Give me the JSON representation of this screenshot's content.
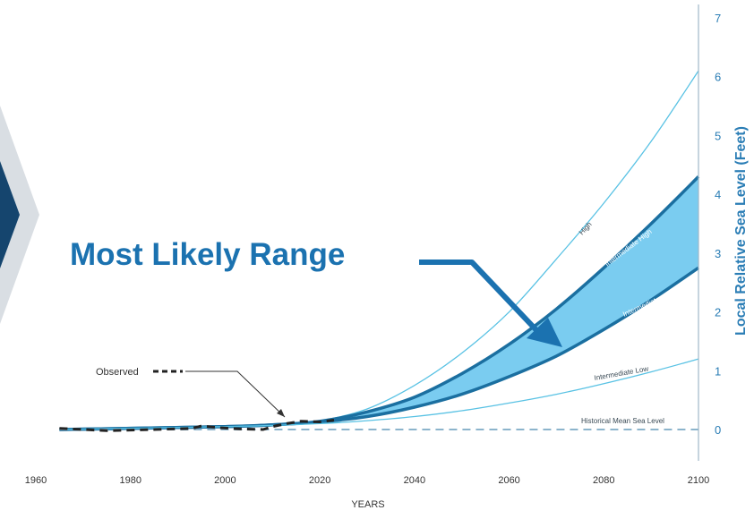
{
  "colors": {
    "band_fill": "#6cc6ee",
    "curve_light": "#59c2e4",
    "curve_dark": "#1b6fa0",
    "axis_right": "#2a7db5",
    "callout_blue": "#1b72b0",
    "chevron_dark": "#15456e",
    "chevron_light": "#d9dee3",
    "baseline_dash": "#8cb4cc"
  },
  "callout": {
    "text": "Most Likely Range"
  },
  "observed_label": "Observed",
  "icons": {
    "chevron": "chevron-right-icon",
    "arrow": "arrow-icon"
  },
  "chart_data": {
    "type": "line",
    "xlabel": "YEARS",
    "ylabel": "Local Relative Sea Level (Feet)",
    "xlim": [
      1960,
      2100
    ],
    "ylim": [
      0,
      7
    ],
    "x_ticks": [
      1960,
      1980,
      2000,
      2020,
      2040,
      2060,
      2080,
      2100
    ],
    "y_ticks": [
      0,
      1,
      2,
      3,
      4,
      5,
      6,
      7
    ],
    "y_axis_position": "right",
    "grid": false,
    "shaded_band": {
      "between": [
        "Intermediate",
        "Intermediate High"
      ]
    },
    "series": [
      {
        "name": "High",
        "style": "thin",
        "x": [
          1965,
          2000,
          2010,
          2020,
          2030,
          2040,
          2050,
          2060,
          2070,
          2080,
          2090,
          2100
        ],
        "y": [
          0.0,
          0.05,
          0.08,
          0.15,
          0.35,
          0.75,
          1.3,
          2.0,
          2.9,
          3.85,
          4.9,
          6.1
        ]
      },
      {
        "name": "Intermediate High",
        "style": "thick",
        "x": [
          1965,
          2000,
          2010,
          2020,
          2030,
          2040,
          2050,
          2060,
          2070,
          2080,
          2090,
          2100
        ],
        "y": [
          0.0,
          0.05,
          0.08,
          0.14,
          0.3,
          0.55,
          0.95,
          1.45,
          2.05,
          2.75,
          3.5,
          4.3
        ]
      },
      {
        "name": "Intermediate",
        "style": "thick",
        "x": [
          1965,
          2000,
          2010,
          2020,
          2030,
          2040,
          2050,
          2060,
          2070,
          2080,
          2090,
          2100
        ],
        "y": [
          0.0,
          0.05,
          0.08,
          0.13,
          0.22,
          0.38,
          0.6,
          0.9,
          1.25,
          1.7,
          2.2,
          2.75
        ]
      },
      {
        "name": "Intermediate Low",
        "style": "thin",
        "x": [
          1965,
          2000,
          2010,
          2020,
          2030,
          2040,
          2050,
          2060,
          2070,
          2080,
          2090,
          2100
        ],
        "y": [
          0.0,
          0.05,
          0.07,
          0.1,
          0.15,
          0.22,
          0.32,
          0.45,
          0.6,
          0.78,
          0.98,
          1.2
        ]
      },
      {
        "name": "Historical Mean Sea Level",
        "style": "dashed",
        "x": [
          1965,
          2100
        ],
        "y": [
          0.0,
          0.0
        ]
      },
      {
        "name": "Observed",
        "style": "dashed-black",
        "x": [
          1965,
          1975,
          1985,
          1993,
          1995,
          1999,
          2003,
          2008,
          2010,
          2013,
          2016,
          2020,
          2023
        ],
        "y": [
          0.02,
          -0.02,
          0.0,
          0.02,
          0.06,
          0.03,
          0.01,
          0.0,
          0.05,
          0.1,
          0.14,
          0.13,
          0.16
        ]
      }
    ]
  }
}
